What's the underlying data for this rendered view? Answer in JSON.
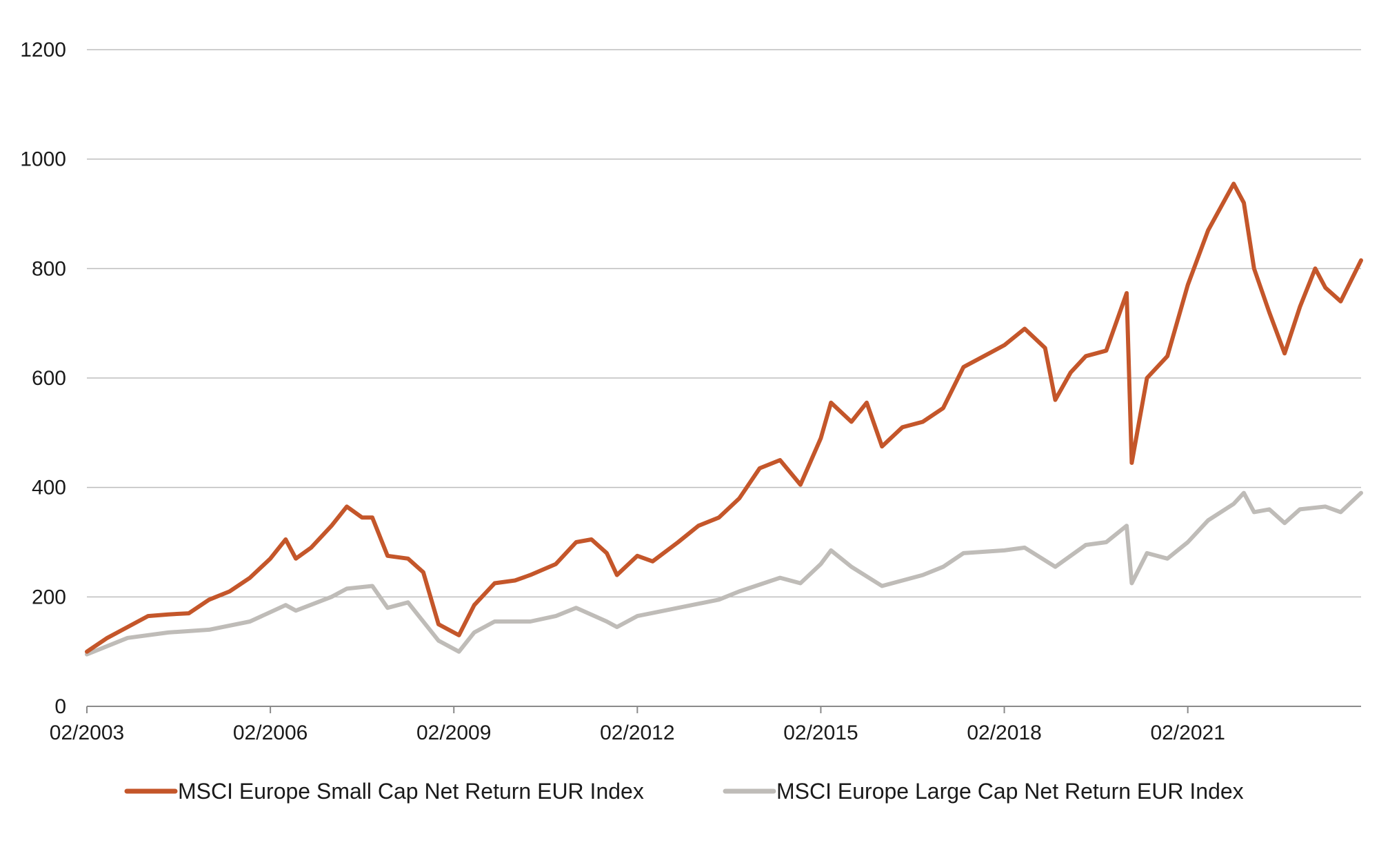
{
  "chart_data": {
    "type": "line",
    "title": "",
    "xlabel": "",
    "ylabel": "",
    "ylim": [
      0,
      1200
    ],
    "xlim": [
      "2003-02",
      "2023-12"
    ],
    "yticks": [
      0,
      200,
      400,
      600,
      800,
      1000,
      1200
    ],
    "yticks_labels": [
      "0",
      "200",
      "400",
      "600",
      "800",
      "1000",
      "1200"
    ],
    "xticks": [
      "2003-02",
      "2006-02",
      "2009-02",
      "2012-02",
      "2015-02",
      "2018-02",
      "2021-02"
    ],
    "xticks_labels": [
      "02/2003",
      "02/2006",
      "02/2009",
      "02/2012",
      "02/2015",
      "02/2018",
      "02/2021"
    ],
    "grid": "horizontal",
    "legend": "bottom",
    "series": [
      {
        "name": "MSCI Europe Small Cap Net Return EUR Index",
        "color": "#c4562a",
        "points": [
          [
            "2003-02",
            100
          ],
          [
            "2003-06",
            125
          ],
          [
            "2003-10",
            145
          ],
          [
            "2004-02",
            165
          ],
          [
            "2004-06",
            168
          ],
          [
            "2004-10",
            170
          ],
          [
            "2005-02",
            195
          ],
          [
            "2005-06",
            210
          ],
          [
            "2005-10",
            235
          ],
          [
            "2006-02",
            270
          ],
          [
            "2006-05",
            305
          ],
          [
            "2006-07",
            270
          ],
          [
            "2006-10",
            290
          ],
          [
            "2007-02",
            330
          ],
          [
            "2007-05",
            365
          ],
          [
            "2007-08",
            345
          ],
          [
            "2007-10",
            345
          ],
          [
            "2008-01",
            275
          ],
          [
            "2008-05",
            270
          ],
          [
            "2008-08",
            245
          ],
          [
            "2008-11",
            150
          ],
          [
            "2009-03",
            130
          ],
          [
            "2009-06",
            185
          ],
          [
            "2009-10",
            225
          ],
          [
            "2010-02",
            230
          ],
          [
            "2010-05",
            240
          ],
          [
            "2010-10",
            260
          ],
          [
            "2011-02",
            300
          ],
          [
            "2011-05",
            305
          ],
          [
            "2011-08",
            280
          ],
          [
            "2011-10",
            240
          ],
          [
            "2012-02",
            275
          ],
          [
            "2012-05",
            265
          ],
          [
            "2012-10",
            300
          ],
          [
            "2013-02",
            330
          ],
          [
            "2013-06",
            345
          ],
          [
            "2013-10",
            380
          ],
          [
            "2014-02",
            435
          ],
          [
            "2014-06",
            450
          ],
          [
            "2014-10",
            405
          ],
          [
            "2015-02",
            490
          ],
          [
            "2015-04",
            555
          ],
          [
            "2015-08",
            520
          ],
          [
            "2015-11",
            555
          ],
          [
            "2016-02",
            475
          ],
          [
            "2016-06",
            510
          ],
          [
            "2016-10",
            520
          ],
          [
            "2017-02",
            545
          ],
          [
            "2017-06",
            620
          ],
          [
            "2017-10",
            640
          ],
          [
            "2018-02",
            660
          ],
          [
            "2018-06",
            690
          ],
          [
            "2018-10",
            655
          ],
          [
            "2018-12",
            560
          ],
          [
            "2019-03",
            610
          ],
          [
            "2019-06",
            640
          ],
          [
            "2019-10",
            650
          ],
          [
            "2020-02",
            755
          ],
          [
            "2020-03",
            445
          ],
          [
            "2020-06",
            600
          ],
          [
            "2020-10",
            640
          ],
          [
            "2021-02",
            770
          ],
          [
            "2021-06",
            870
          ],
          [
            "2021-11",
            955
          ],
          [
            "2022-01",
            920
          ],
          [
            "2022-03",
            800
          ],
          [
            "2022-06",
            720
          ],
          [
            "2022-09",
            645
          ],
          [
            "2022-12",
            730
          ],
          [
            "2023-03",
            800
          ],
          [
            "2023-05",
            765
          ],
          [
            "2023-08",
            740
          ],
          [
            "2023-12",
            815
          ]
        ]
      },
      {
        "name": "MSCI Europe Large Cap Net Return EUR Index",
        "color": "#bfbcb8",
        "points": [
          [
            "2003-02",
            95
          ],
          [
            "2003-10",
            125
          ],
          [
            "2004-06",
            135
          ],
          [
            "2005-02",
            140
          ],
          [
            "2005-10",
            155
          ],
          [
            "2006-05",
            185
          ],
          [
            "2006-07",
            175
          ],
          [
            "2007-02",
            200
          ],
          [
            "2007-05",
            215
          ],
          [
            "2007-10",
            220
          ],
          [
            "2008-01",
            180
          ],
          [
            "2008-05",
            190
          ],
          [
            "2008-11",
            120
          ],
          [
            "2009-03",
            100
          ],
          [
            "2009-06",
            135
          ],
          [
            "2009-10",
            155
          ],
          [
            "2010-05",
            155
          ],
          [
            "2010-10",
            165
          ],
          [
            "2011-02",
            180
          ],
          [
            "2011-08",
            155
          ],
          [
            "2011-10",
            145
          ],
          [
            "2012-02",
            165
          ],
          [
            "2012-10",
            180
          ],
          [
            "2013-06",
            195
          ],
          [
            "2013-10",
            210
          ],
          [
            "2014-06",
            235
          ],
          [
            "2014-10",
            225
          ],
          [
            "2015-02",
            260
          ],
          [
            "2015-04",
            285
          ],
          [
            "2015-08",
            255
          ],
          [
            "2016-02",
            220
          ],
          [
            "2016-10",
            240
          ],
          [
            "2017-02",
            255
          ],
          [
            "2017-06",
            280
          ],
          [
            "2018-02",
            285
          ],
          [
            "2018-06",
            290
          ],
          [
            "2018-12",
            255
          ],
          [
            "2019-06",
            295
          ],
          [
            "2019-10",
            300
          ],
          [
            "2020-02",
            330
          ],
          [
            "2020-03",
            225
          ],
          [
            "2020-06",
            280
          ],
          [
            "2020-10",
            270
          ],
          [
            "2021-02",
            300
          ],
          [
            "2021-06",
            340
          ],
          [
            "2021-11",
            370
          ],
          [
            "2022-01",
            390
          ],
          [
            "2022-03",
            355
          ],
          [
            "2022-06",
            360
          ],
          [
            "2022-09",
            335
          ],
          [
            "2022-12",
            360
          ],
          [
            "2023-05",
            365
          ],
          [
            "2023-08",
            355
          ],
          [
            "2023-12",
            390
          ]
        ]
      }
    ]
  }
}
